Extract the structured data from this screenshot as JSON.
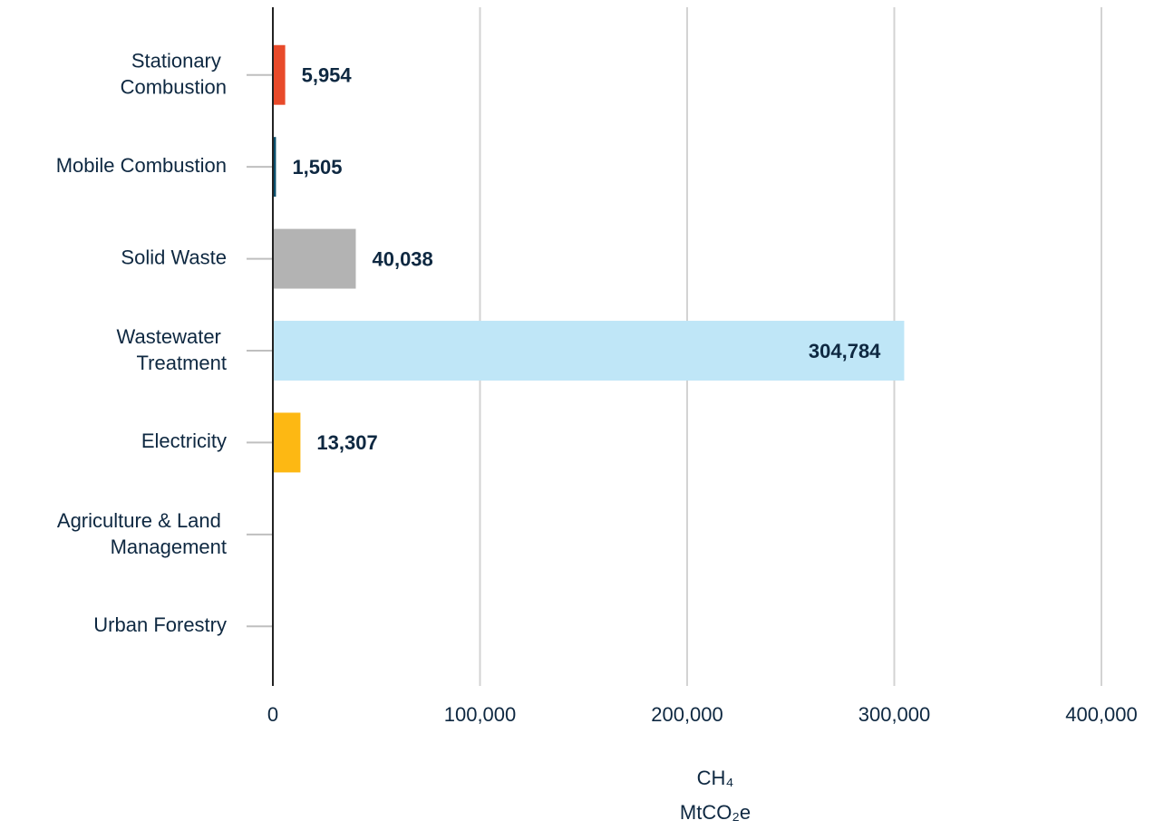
{
  "chart_data": {
    "type": "barh",
    "categories": [
      "Stationary Combustion",
      "Mobile Combustion",
      "Solid Waste",
      "Wastewater Treatment",
      "Electricity",
      "Agriculture & Land Management",
      "Urban Forestry"
    ],
    "values": [
      5954,
      1505,
      40038,
      304784,
      13307,
      null,
      null
    ],
    "value_labels": [
      "5,954",
      "1,505",
      "40,038",
      "304,784",
      "13,307",
      null,
      null
    ],
    "colors": [
      "#e84a2a",
      "#0b4f6c",
      "#b3b3b3",
      "#bfe6f7",
      "#fdb813",
      null,
      null
    ],
    "xlim": [
      0,
      400000
    ],
    "xticks": [
      0,
      {
        "value": 100000,
        "label": "100,000"
      },
      {
        "value": 200000,
        "label": "200,000"
      },
      {
        "value": 300000,
        "label": "300,000"
      },
      {
        "value": 400000,
        "label": "400,000"
      }
    ],
    "xlabel": [
      "CH₄",
      "MtCO₂e"
    ],
    "grid": true
  }
}
